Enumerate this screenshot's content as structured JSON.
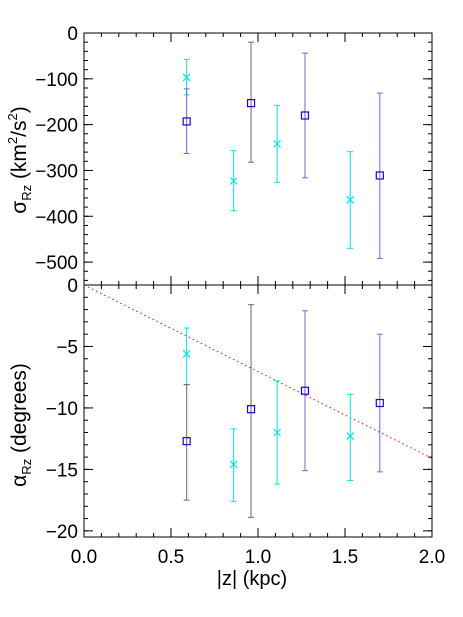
{
  "chart_data": [
    {
      "type": "scatter",
      "panel": "top",
      "ylabel": {
        "symbol": "σ",
        "subscript": "Rz",
        "unit_pre": " (km",
        "unit_sup1": "2",
        "unit_mid": "/s",
        "unit_sup2": "2",
        "unit_post": ")"
      },
      "ylim": [
        -550,
        0
      ],
      "yticks": [
        0,
        -100,
        -200,
        -300,
        -400,
        -500
      ],
      "xlim": [
        0.0,
        2.0
      ],
      "series": [
        {
          "marker": "x",
          "color": "#00e5e5",
          "points": [
            {
              "x": 0.59,
              "y": -97,
              "err_lo": -135,
              "err_hi": -58
            },
            {
              "x": 0.86,
              "y": -323,
              "err_lo": -388,
              "err_hi": -257
            },
            {
              "x": 1.11,
              "y": -242,
              "err_lo": -326,
              "err_hi": -158
            },
            {
              "x": 1.53,
              "y": -364,
              "err_lo": -470,
              "err_hi": -259
            }
          ]
        },
        {
          "marker": "square",
          "color": "#2200cc",
          "error_colors": [
            "#7766dd",
            "#806060",
            "#7766dd",
            "#7766dd"
          ],
          "points": [
            {
              "x": 0.59,
              "y": -193,
              "err_lo": -263,
              "err_hi": -122
            },
            {
              "x": 0.96,
              "y": -153,
              "err_lo": -282,
              "err_hi": -20
            },
            {
              "x": 1.27,
              "y": -180,
              "err_lo": -316,
              "err_hi": -44
            },
            {
              "x": 1.7,
              "y": -311,
              "err_lo": -492,
              "err_hi": -131
            }
          ]
        }
      ]
    },
    {
      "type": "scatter",
      "panel": "bottom",
      "ylabel": {
        "symbol": "α",
        "subscript": "Rz",
        "unit_pre": " (degrees)"
      },
      "ylim": [
        -20.5,
        0
      ],
      "yticks": [
        0,
        -5,
        -10,
        -15,
        -20
      ],
      "xlim": [
        0.0,
        2.0
      ],
      "xticks": [
        "0.0",
        "0.5",
        "1.0",
        "1.5",
        "2.0"
      ],
      "xlabel": "|z| (kpc)",
      "reference_line": {
        "x": [
          0.0,
          2.0
        ],
        "y": [
          0.0,
          -14.1
        ],
        "style": "dotted",
        "color": "#ff0000"
      },
      "series": [
        {
          "marker": "x",
          "color": "#00e5e5",
          "points": [
            {
              "x": 0.59,
              "y": -5.6,
              "err_lo": -8.1,
              "err_hi": -3.5
            },
            {
              "x": 0.86,
              "y": -14.6,
              "err_lo": -17.6,
              "err_hi": -11.7
            },
            {
              "x": 1.11,
              "y": -12.0,
              "err_lo": -16.2,
              "err_hi": -7.8
            },
            {
              "x": 1.53,
              "y": -12.3,
              "err_lo": -15.9,
              "err_hi": -8.9
            }
          ]
        },
        {
          "marker": "square",
          "color": "#2200cc",
          "error_colors": [
            "#806060",
            "#806060",
            "#7766dd",
            "#7766dd"
          ],
          "points": [
            {
              "x": 0.59,
              "y": -12.7,
              "err_lo": -17.5,
              "err_hi": -8.1
            },
            {
              "x": 0.96,
              "y": -10.1,
              "err_lo": -18.9,
              "err_hi": -1.6
            },
            {
              "x": 1.27,
              "y": -8.6,
              "err_lo": -15.1,
              "err_hi": -2.1
            },
            {
              "x": 1.7,
              "y": -9.6,
              "err_lo": -15.2,
              "err_hi": -4.0
            }
          ]
        }
      ]
    }
  ]
}
